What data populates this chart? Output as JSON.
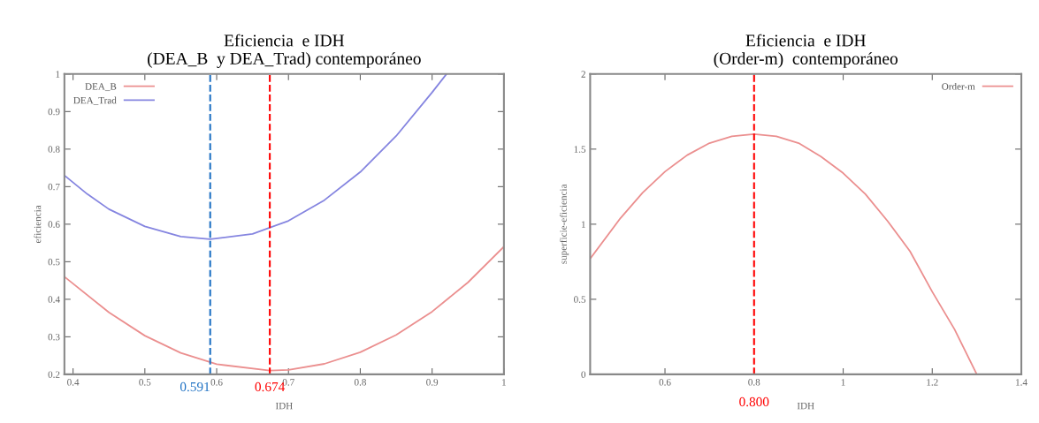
{
  "chart_data": [
    {
      "type": "line",
      "title": "Eficiencia  e IDH\n(DEA_B  y DEA_Trad) contemporáneo",
      "xlabel": "IDH",
      "ylabel": "eficiencia",
      "xlim": [
        0.388,
        1.0
      ],
      "xticks": [
        0.4,
        0.5,
        0.6,
        0.7,
        0.8,
        0.9,
        1
      ],
      "ylim": [
        0.2,
        1
      ],
      "yticks": [
        0.2,
        0.3,
        0.4,
        0.5,
        0.6,
        0.7,
        0.8,
        0.9,
        1
      ],
      "grid": false,
      "legend": "top left",
      "marker": "none",
      "line_style": "solid",
      "series": [
        {
          "name": "DEA_B",
          "color": "#eb8f8f",
          "x": [
            0.388,
            0.45,
            0.5,
            0.55,
            0.6,
            0.674,
            0.7,
            0.75,
            0.8,
            0.85,
            0.9,
            0.95,
            1.0
          ],
          "values": [
            0.46,
            0.365,
            0.303,
            0.257,
            0.227,
            0.21,
            0.212,
            0.228,
            0.259,
            0.305,
            0.367,
            0.445,
            0.54
          ]
        },
        {
          "name": "DEA_Trad",
          "color": "#8585e0",
          "x": [
            0.388,
            0.42,
            0.45,
            0.5,
            0.55,
            0.591,
            0.65,
            0.7,
            0.75,
            0.8,
            0.85,
            0.9,
            0.92
          ],
          "values": [
            0.73,
            0.68,
            0.64,
            0.594,
            0.567,
            0.56,
            0.574,
            0.609,
            0.664,
            0.739,
            0.835,
            0.951,
            1.0
          ]
        }
      ],
      "ref_lines": [
        {
          "axis": "x",
          "value": 0.591,
          "label": "0.591",
          "color": "#1f72c4",
          "line_style": "dashed"
        },
        {
          "axis": "x",
          "value": 0.674,
          "label": "0.674",
          "color": "#ff0000",
          "line_style": "dashed"
        }
      ]
    },
    {
      "type": "line",
      "title": "Eficiencia  e IDH\n(Order-m)  contemporáneo",
      "xlabel": "IDH",
      "ylabel": "superficie-eficiencia",
      "xlim": [
        0.432,
        1.4
      ],
      "xticks": [
        0.6,
        0.8,
        1,
        1.2,
        1.4
      ],
      "ylim": [
        0,
        2
      ],
      "yticks": [
        0,
        0.5,
        1,
        1.5,
        2
      ],
      "grid": false,
      "legend": "top right",
      "marker": "none",
      "line_style": "solid",
      "series": [
        {
          "name": "Order-m",
          "color": "#eb8f8f",
          "x": [
            0.432,
            0.5,
            0.55,
            0.6,
            0.65,
            0.7,
            0.75,
            0.8,
            0.85,
            0.9,
            0.95,
            1.0,
            1.05,
            1.1,
            1.15,
            1.2,
            1.25,
            1.3
          ],
          "values": [
            0.77,
            1.04,
            1.21,
            1.35,
            1.46,
            1.54,
            1.585,
            1.6,
            1.585,
            1.54,
            1.45,
            1.34,
            1.2,
            1.02,
            0.82,
            0.55,
            0.3,
            0.0
          ]
        }
      ],
      "ref_lines": [
        {
          "axis": "x",
          "value": 0.8,
          "label": "0.800",
          "color": "#ff0000",
          "line_style": "dashed"
        }
      ]
    }
  ]
}
